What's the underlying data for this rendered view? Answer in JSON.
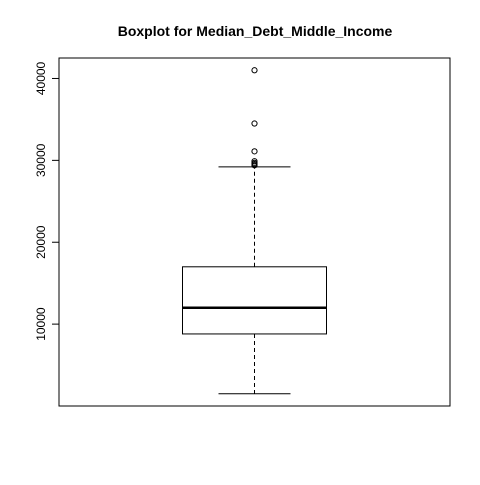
{
  "chart_data": {
    "type": "boxplot",
    "title": "Boxplot for  Median_Debt_Middle_Income",
    "xlabel": "",
    "ylabel": "",
    "ylim": [
      0,
      42500
    ],
    "yticks": [
      10000,
      20000,
      30000,
      40000
    ],
    "ytick_labels": [
      "10000",
      "20000",
      "30000",
      "40000"
    ],
    "grid": false,
    "box": {
      "lower_whisker": 1500,
      "q1": 8800,
      "median": 12000,
      "q3": 17000,
      "upper_whisker": 29200
    },
    "outliers": [
      29400,
      29550,
      29700,
      29900,
      31100,
      34500,
      41000
    ]
  }
}
